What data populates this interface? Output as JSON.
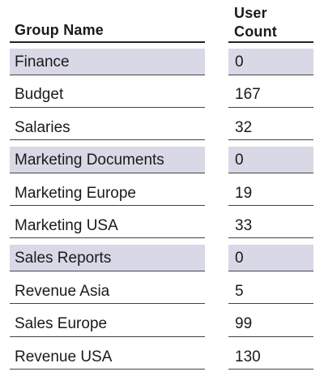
{
  "header": {
    "group_name": "Group Name",
    "user_count_line1": "User",
    "user_count_line2": "Count"
  },
  "colors": {
    "highlight": "#d8d8e6",
    "rule": "#444444"
  },
  "rows": [
    {
      "name": "Finance",
      "count": "0",
      "highlighted": true
    },
    {
      "name": "Budget",
      "count": "167",
      "highlighted": false
    },
    {
      "name": "Salaries",
      "count": "32",
      "highlighted": false
    },
    {
      "name": "Marketing Documents",
      "count": "0",
      "highlighted": true
    },
    {
      "name": "Marketing Europe",
      "count": "19",
      "highlighted": false
    },
    {
      "name": "Marketing USA",
      "count": "33",
      "highlighted": false
    },
    {
      "name": "Sales Reports",
      "count": "0",
      "highlighted": true
    },
    {
      "name": "Revenue Asia",
      "count": "5",
      "highlighted": false
    },
    {
      "name": "Sales Europe",
      "count": "99",
      "highlighted": false
    },
    {
      "name": "Revenue USA",
      "count": "130",
      "highlighted": false
    }
  ]
}
